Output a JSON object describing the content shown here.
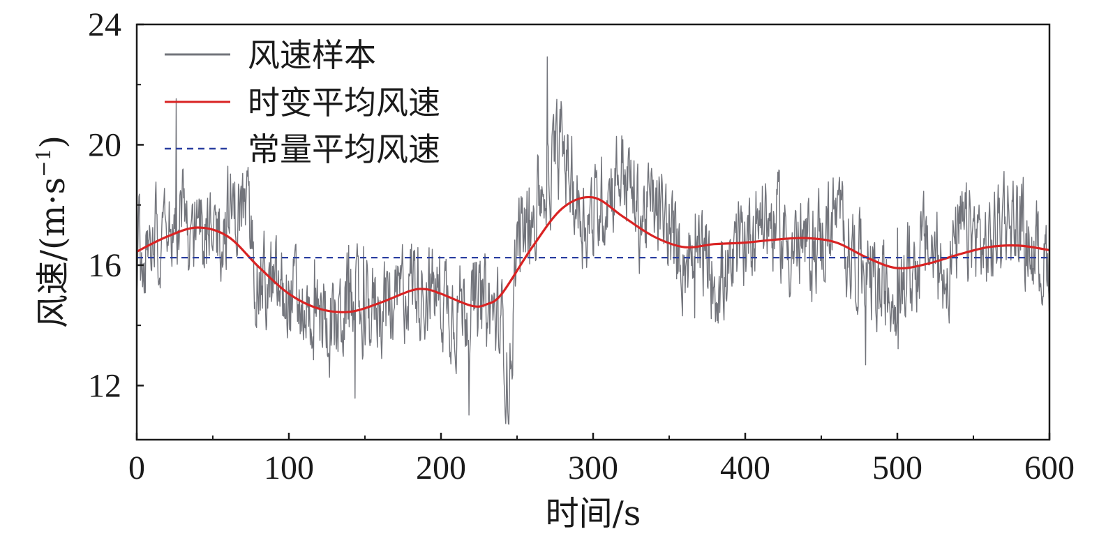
{
  "chart_data": {
    "type": "line",
    "xlabel": "时间/s",
    "ylabel_main": "风速/(m·s",
    "ylabel_sup": "−1",
    "ylabel_close": ")",
    "xlim": [
      0,
      600
    ],
    "ylim": [
      10.2,
      24
    ],
    "x_ticks": [
      "0",
      "100",
      "200",
      "300",
      "400",
      "500",
      "600"
    ],
    "y_ticks": [
      "12",
      "16",
      "20",
      "24"
    ],
    "legend_position": "top-left",
    "grid": false,
    "colors": {
      "sample": "#72747b",
      "trend": "#d92323",
      "constant": "#2a3fa0"
    },
    "series": [
      {
        "name": "风速样本",
        "style": "solid-thin",
        "x": [
          0,
          10,
          20,
          30,
          40,
          50,
          60,
          70,
          80,
          90,
          100,
          110,
          120,
          130,
          140,
          150,
          160,
          170,
          180,
          190,
          200,
          210,
          220,
          230,
          240,
          245,
          250,
          260,
          270,
          280,
          290,
          300,
          310,
          320,
          330,
          340,
          350,
          360,
          370,
          380,
          390,
          400,
          410,
          420,
          430,
          440,
          450,
          460,
          470,
          480,
          490,
          500,
          510,
          520,
          530,
          540,
          550,
          560,
          570,
          580,
          590,
          600
        ],
        "y": [
          16.3,
          16.9,
          17.8,
          17.4,
          16.6,
          17.1,
          17.6,
          17.9,
          15.6,
          15.0,
          14.9,
          14.6,
          14.3,
          14.0,
          14.8,
          14.3,
          14.9,
          14.6,
          15.6,
          15.3,
          15.0,
          14.7,
          14.8,
          14.6,
          13.9,
          12.0,
          16.9,
          17.6,
          18.9,
          20.0,
          17.9,
          17.5,
          18.6,
          19.3,
          17.6,
          18.0,
          16.9,
          16.3,
          16.4,
          15.7,
          15.4,
          17.0,
          17.8,
          17.3,
          16.7,
          16.4,
          16.9,
          17.6,
          16.5,
          15.8,
          14.9,
          15.4,
          15.9,
          16.7,
          15.7,
          16.8,
          17.1,
          16.4,
          17.9,
          17.3,
          16.4,
          16.1
        ]
      },
      {
        "name": "时变平均风速",
        "style": "solid-thick",
        "x": [
          0,
          20,
          40,
          60,
          80,
          100,
          120,
          140,
          160,
          180,
          190,
          200,
          220,
          230,
          240,
          260,
          280,
          300,
          320,
          340,
          360,
          380,
          400,
          420,
          440,
          460,
          480,
          500,
          520,
          540,
          560,
          580,
          600
        ],
        "y": [
          16.45,
          16.95,
          17.25,
          16.95,
          15.95,
          15.05,
          14.55,
          14.45,
          14.75,
          15.15,
          15.2,
          15.05,
          14.65,
          14.7,
          15.05,
          16.6,
          17.9,
          18.25,
          17.6,
          16.95,
          16.6,
          16.7,
          16.75,
          16.85,
          16.9,
          16.75,
          16.25,
          15.9,
          16.05,
          16.35,
          16.6,
          16.65,
          16.5
        ]
      },
      {
        "name": "常量平均风速",
        "style": "dashed",
        "x": [
          0,
          600
        ],
        "y": [
          16.25,
          16.25
        ]
      }
    ]
  }
}
